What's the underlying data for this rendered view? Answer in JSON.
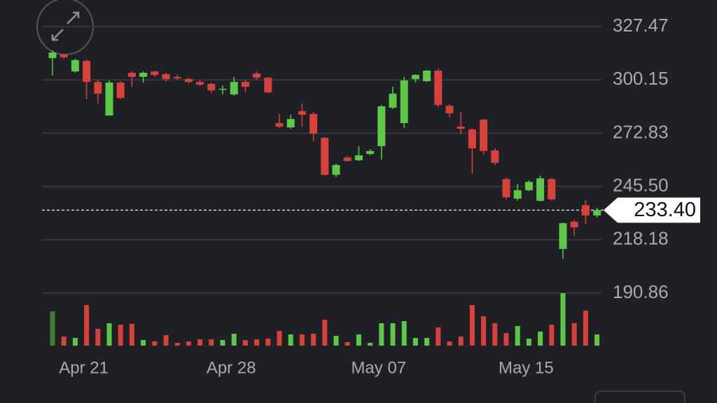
{
  "chart_data": {
    "type": "candlestick",
    "categories": [
      null,
      null,
      null,
      "Apr 21",
      null,
      null,
      null,
      null,
      null,
      null,
      null,
      null,
      null,
      null,
      null,
      null,
      "Apr 28",
      null,
      null,
      null,
      null,
      null,
      null,
      null,
      null,
      null,
      null,
      null,
      null,
      "May 07",
      null,
      null,
      null,
      null,
      null,
      null,
      null,
      null,
      null,
      null,
      null,
      null,
      "May 15",
      null,
      null,
      null,
      null,
      null,
      null
    ],
    "open": [
      311.3,
      313.1,
      304.5,
      309.9,
      299.1,
      281.9,
      298.8,
      303.8,
      301.7,
      304.5,
      303.1,
      301.7,
      300.6,
      299.1,
      298.1,
      295.2,
      292.7,
      299.1,
      303.4,
      301.3,
      278.0,
      275.8,
      284.1,
      282.7,
      270.5,
      251.5,
      260.4,
      259.0,
      262.2,
      266.2,
      285.9,
      278.0,
      300.6,
      299.5,
      304.9,
      286.9,
      276.2,
      274.8,
      279.8,
      264.0,
      249.3,
      239.3,
      243.6,
      238.2,
      249.3,
      213.5,
      227.5,
      236.0,
      230.7
    ],
    "high": [
      315.3,
      313.8,
      311.0,
      310.6,
      300.2,
      299.9,
      299.5,
      304.5,
      304.5,
      304.9,
      303.8,
      302.7,
      301.3,
      299.9,
      298.8,
      297.3,
      301.7,
      300.2,
      304.5,
      301.7,
      282.7,
      282.3,
      288.0,
      283.7,
      270.8,
      257.2,
      261.1,
      266.2,
      264.7,
      287.3,
      296.6,
      301.7,
      303.1,
      305.2,
      306.0,
      287.7,
      283.7,
      275.5,
      280.1,
      265.1,
      250.0,
      246.8,
      248.6,
      251.1,
      250.0,
      227.1,
      228.5,
      238.6,
      234.6
    ],
    "low": [
      302.4,
      311.0,
      303.8,
      290.2,
      288.0,
      281.9,
      290.2,
      296.6,
      298.8,
      301.7,
      299.5,
      300.2,
      298.4,
      297.0,
      293.4,
      292.7,
      292.0,
      293.8,
      300.2,
      293.4,
      275.5,
      275.1,
      276.2,
      268.7,
      251.1,
      250.4,
      258.3,
      258.6,
      261.5,
      259.3,
      285.2,
      275.5,
      298.8,
      299.1,
      286.2,
      280.9,
      272.3,
      252.2,
      261.9,
      256.5,
      238.9,
      238.2,
      243.2,
      237.8,
      238.2,
      208.4,
      220.3,
      226.4,
      229.6
    ],
    "close": [
      314.2,
      311.7,
      310.3,
      299.1,
      293.1,
      298.8,
      290.9,
      301.7,
      303.8,
      302.7,
      300.6,
      300.9,
      299.1,
      297.7,
      294.8,
      295.6,
      299.1,
      296.6,
      301.3,
      293.8,
      276.2,
      280.1,
      282.3,
      272.6,
      251.5,
      256.5,
      258.6,
      261.5,
      263.7,
      286.6,
      293.1,
      299.9,
      302.7,
      304.9,
      287.3,
      283.0,
      275.1,
      265.1,
      263.7,
      257.6,
      240.0,
      243.6,
      247.9,
      249.7,
      238.9,
      226.7,
      224.6,
      230.7,
      233.4
    ],
    "volume": [
      49,
      13,
      11,
      58,
      24,
      32,
      30,
      31,
      8,
      6,
      15,
      4,
      6,
      9,
      9,
      8,
      17,
      8,
      9,
      10,
      21,
      16,
      16,
      17,
      37,
      14,
      5,
      16,
      4,
      32,
      32,
      35,
      11,
      11,
      26,
      6,
      13,
      58,
      42,
      32,
      18,
      28,
      10,
      20,
      30,
      75,
      32,
      50,
      16
    ],
    "up_color": "#5cc846",
    "down_color": "#d8403a",
    "ylim": [
      190.86,
      327.47
    ],
    "yticks": [
      327.47,
      300.15,
      272.83,
      {
        "value": 245.5,
        "label": "245.50"
      },
      218.18,
      190.86
    ],
    "last_price": {
      "value": 233.4,
      "label": "233.40"
    },
    "grid": true
  }
}
